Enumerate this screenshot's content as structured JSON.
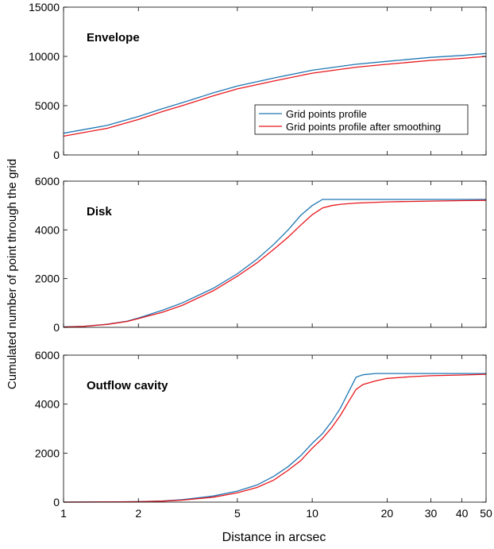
{
  "figure": {
    "ylabel": "Cumulated number of point through the grid",
    "xlabel": "Distance in arcsec"
  },
  "legend": {
    "items": [
      "Grid points profile",
      "Grid points profile after smoothing"
    ]
  },
  "colors": {
    "series_raw": "#1f77b4",
    "series_smoothed": "#e8171c",
    "axes": "#000000"
  },
  "chart_data": [
    {
      "type": "line",
      "title": "Envelope",
      "xscale": "log",
      "xlim": [
        1,
        50
      ],
      "ylim": [
        0,
        15000
      ],
      "yticks": [
        0,
        5000,
        10000,
        15000
      ],
      "ytick_labels": [
        "0",
        "5000",
        "10000",
        "15000"
      ],
      "xticks": [
        1,
        2,
        5,
        10,
        20,
        30,
        40,
        50
      ],
      "xtick_labels": [],
      "legend_position": "middle-right",
      "series": [
        {
          "name": "Grid points profile",
          "x": [
            1,
            1.5,
            2,
            2.5,
            3,
            4,
            5,
            7,
            10,
            15,
            20,
            30,
            40,
            50
          ],
          "y": [
            2200,
            3000,
            3900,
            4700,
            5300,
            6300,
            7000,
            7800,
            8600,
            9200,
            9500,
            9900,
            10100,
            10300
          ]
        },
        {
          "name": "Grid points profile after smoothing",
          "x": [
            1,
            1.5,
            2,
            2.5,
            3,
            4,
            5,
            7,
            10,
            15,
            20,
            30,
            40,
            50
          ],
          "y": [
            1900,
            2700,
            3600,
            4400,
            5000,
            6000,
            6700,
            7500,
            8300,
            8900,
            9200,
            9600,
            9800,
            10000
          ]
        }
      ]
    },
    {
      "type": "line",
      "title": "Disk",
      "xscale": "log",
      "xlim": [
        1,
        50
      ],
      "ylim": [
        0,
        6000
      ],
      "yticks": [
        0,
        2000,
        4000,
        6000
      ],
      "ytick_labels": [
        "0",
        "2000",
        "4000",
        "6000"
      ],
      "xticks": [
        1,
        2,
        5,
        10,
        20,
        30,
        40,
        50
      ],
      "xtick_labels": [],
      "series": [
        {
          "name": "Grid points profile",
          "x": [
            1,
            1.2,
            1.5,
            1.8,
            2,
            2.5,
            3,
            4,
            5,
            6,
            7,
            8,
            9,
            10,
            11,
            12,
            15,
            20,
            30,
            40,
            50
          ],
          "y": [
            20,
            40,
            130,
            250,
            380,
            700,
            1000,
            1600,
            2200,
            2800,
            3400,
            4000,
            4600,
            5000,
            5250,
            5250,
            5250,
            5250,
            5250,
            5250,
            5250
          ]
        },
        {
          "name": "Grid points profile after smoothing",
          "x": [
            1,
            1.2,
            1.5,
            1.8,
            2,
            2.5,
            3,
            4,
            5,
            6,
            7,
            8,
            9,
            10,
            11,
            12,
            13,
            15,
            20,
            30,
            40,
            50
          ],
          "y": [
            10,
            35,
            120,
            240,
            360,
            620,
            900,
            1500,
            2100,
            2650,
            3200,
            3700,
            4200,
            4620,
            4900,
            5000,
            5050,
            5100,
            5150,
            5180,
            5200,
            5210
          ]
        }
      ]
    },
    {
      "type": "line",
      "title": "Outflow cavity",
      "xscale": "log",
      "xlim": [
        1,
        50
      ],
      "ylim": [
        0,
        6000
      ],
      "yticks": [
        0,
        2000,
        4000,
        6000
      ],
      "ytick_labels": [
        "0",
        "2000",
        "4000",
        "6000"
      ],
      "xticks": [
        1,
        2,
        5,
        10,
        20,
        30,
        40,
        50
      ],
      "xtick_labels": [
        "1",
        "2",
        "5",
        "10",
        "20",
        "30",
        "40",
        "50"
      ],
      "series": [
        {
          "name": "Grid points profile",
          "x": [
            1,
            1.5,
            2,
            2.5,
            3,
            4,
            5,
            6,
            7,
            8,
            9,
            10,
            11,
            12,
            13,
            14,
            15,
            16,
            18,
            20,
            30,
            40,
            50
          ],
          "y": [
            0,
            5,
            20,
            50,
            100,
            250,
            450,
            700,
            1050,
            1450,
            1900,
            2400,
            2800,
            3300,
            3850,
            4500,
            5100,
            5200,
            5250,
            5250,
            5250,
            5250,
            5250
          ]
        },
        {
          "name": "Grid points profile after smoothing",
          "x": [
            1,
            1.5,
            2,
            2.5,
            3,
            4,
            5,
            6,
            7,
            8,
            9,
            10,
            11,
            12,
            13,
            14,
            15,
            16,
            18,
            20,
            25,
            30,
            40,
            50
          ],
          "y": [
            0,
            5,
            15,
            40,
            80,
            200,
            380,
            600,
            900,
            1300,
            1700,
            2200,
            2600,
            3050,
            3550,
            4100,
            4600,
            4800,
            4950,
            5050,
            5120,
            5160,
            5190,
            5220
          ]
        }
      ]
    }
  ]
}
